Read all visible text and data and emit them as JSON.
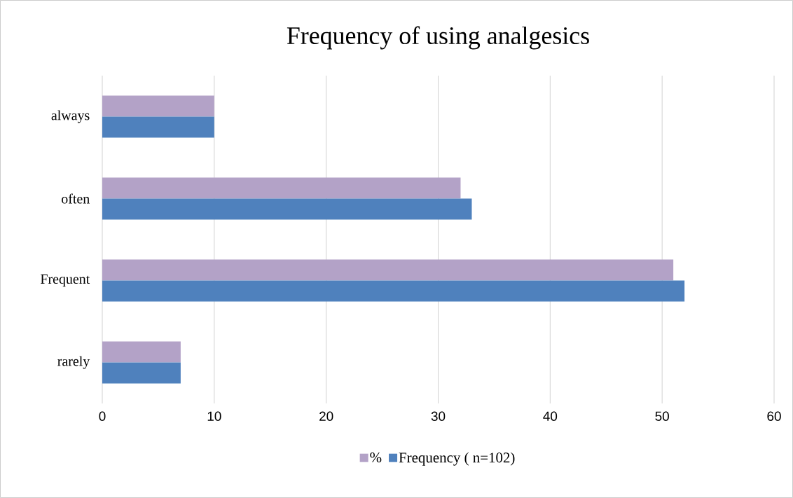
{
  "chart_data": {
    "type": "bar",
    "orientation": "horizontal",
    "title": "Frequency of using analgesics",
    "categories": [
      "always",
      "often",
      "Frequent",
      "rarely"
    ],
    "series": [
      {
        "name": "%",
        "color": "#b3a2c7",
        "values": [
          10,
          32,
          51,
          7
        ]
      },
      {
        "name": "Frequency ( n=102)",
        "color": "#4f81bd",
        "values": [
          10,
          33,
          52,
          7
        ]
      }
    ],
    "xlim": [
      0,
      60
    ],
    "xticks": [
      0,
      10,
      20,
      30,
      40,
      50,
      60
    ],
    "grid": "x",
    "legend": "bottom"
  }
}
